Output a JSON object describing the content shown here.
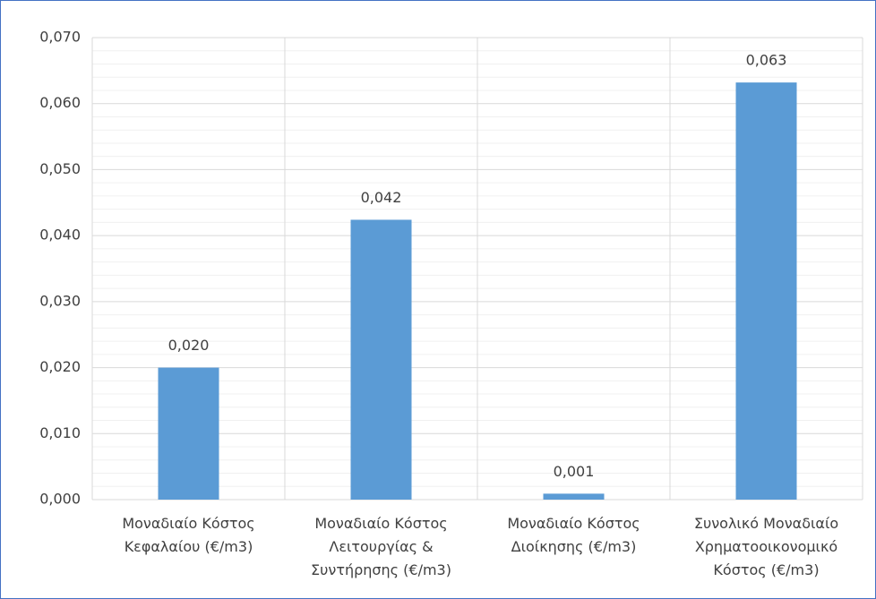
{
  "chart_data": {
    "type": "bar",
    "categories": [
      "Μοναδιαίο Κόστος Κεφαλαίου (€/m3)",
      "Μοναδιαίο Κόστος Λειτουργίας & Συντήρησης (€/m3)",
      "Μοναδιαίο Κόστος Διοίκησης (€/m3)",
      "Συνολικό Μοναδιαίο Χρηματοοικονομικό Κόστος (€/m3)"
    ],
    "values": [
      0.02,
      0.0424,
      0.0009,
      0.0632
    ],
    "value_labels": [
      "0,020",
      "0,042",
      "0,001",
      "0,063"
    ],
    "color": "#5b9bd5",
    "ylim": [
      0,
      0.07
    ],
    "yticks": [
      {
        "value": 0,
        "label": "0,000"
      },
      {
        "value": 0.01,
        "label": "0,010"
      },
      {
        "value": 0.02,
        "label": "0,020"
      },
      {
        "value": 0.03,
        "label": "0,030"
      },
      {
        "value": 0.04,
        "label": "0,040"
      },
      {
        "value": 0.05,
        "label": "0,050"
      },
      {
        "value": 0.06,
        "label": "0,060"
      },
      {
        "value": 0.07,
        "label": "0,070"
      }
    ],
    "grid": true
  }
}
